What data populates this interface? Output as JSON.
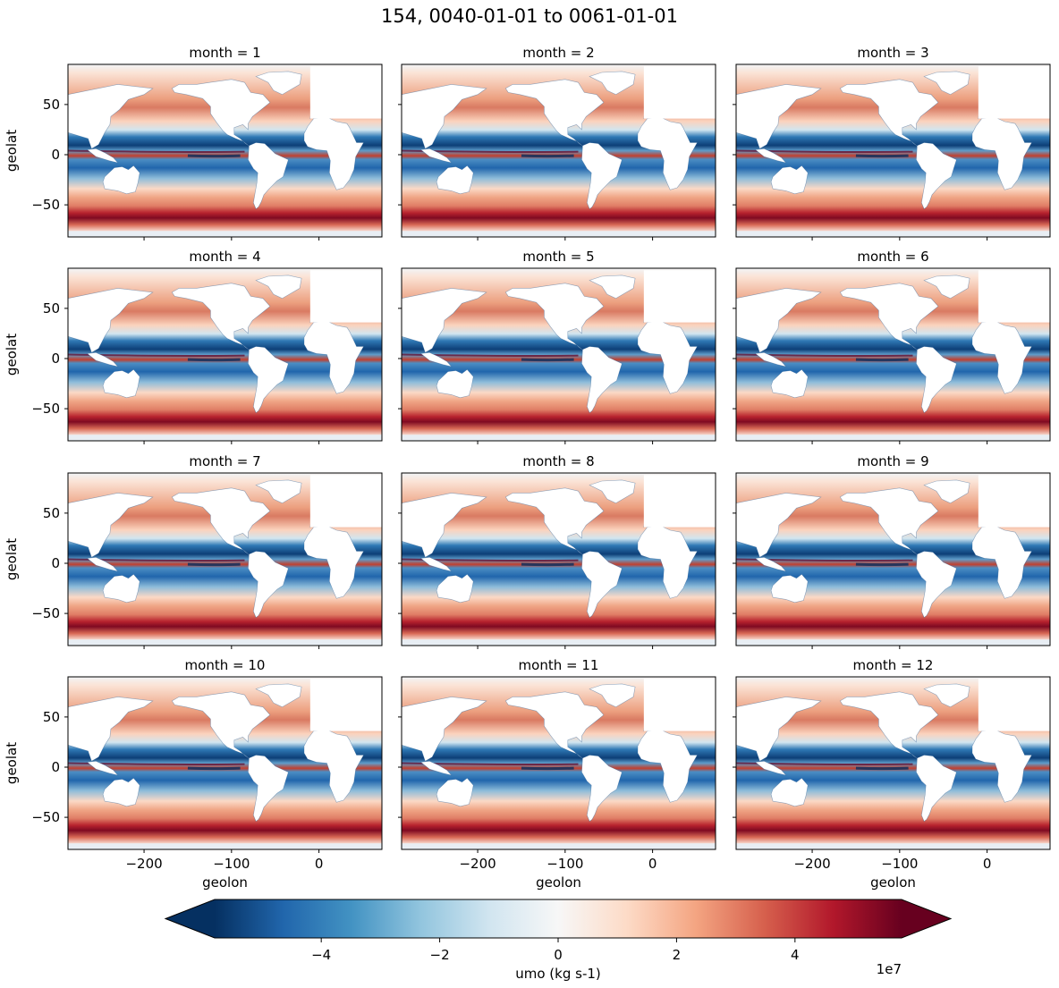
{
  "chart_data": {
    "type": "heatmap",
    "title": "154, 0040-01-01 to 0061-01-01",
    "variable": "umo",
    "xlabel": "geolon",
    "ylabel": "geolat",
    "xlim": [
      -287,
      72
    ],
    "ylim": [
      -82,
      90
    ],
    "xticks": [
      -200,
      -100,
      0
    ],
    "yticks": [
      -50,
      0,
      50
    ],
    "xtick_labels": [
      "−200",
      "−100",
      "0"
    ],
    "ytick_labels": [
      "−50",
      "0",
      "50"
    ],
    "panels": [
      {
        "title": "month = 1",
        "month": 1
      },
      {
        "title": "month = 2",
        "month": 2
      },
      {
        "title": "month = 3",
        "month": 3
      },
      {
        "title": "month = 4",
        "month": 4
      },
      {
        "title": "month = 5",
        "month": 5
      },
      {
        "title": "month = 6",
        "month": 6
      },
      {
        "title": "month = 7",
        "month": 7
      },
      {
        "title": "month = 8",
        "month": 8
      },
      {
        "title": "month = 9",
        "month": 9
      },
      {
        "title": "month = 10",
        "month": 10
      },
      {
        "title": "month = 11",
        "month": 11
      },
      {
        "title": "month = 12",
        "month": 12
      }
    ],
    "colorbar": {
      "label": "umo (kg s-1)",
      "cmap": "RdBu_r",
      "vmin": -5.8,
      "vmax": 5.8,
      "ticks": [
        -4,
        -2,
        0,
        2,
        4
      ],
      "tick_labels": [
        "−4",
        "−2",
        "0",
        "2",
        "4"
      ],
      "multiplier_label": "1e7",
      "extend": "both"
    },
    "colors": {
      "strong_negative": "#053061",
      "negative": "#2166ac",
      "weak_negative": "#92c5de",
      "neutral": "#f7f7f7",
      "weak_positive": "#f4a582",
      "positive": "#d6604d",
      "strong_positive": "#67001f",
      "land": "#ffffff"
    }
  }
}
